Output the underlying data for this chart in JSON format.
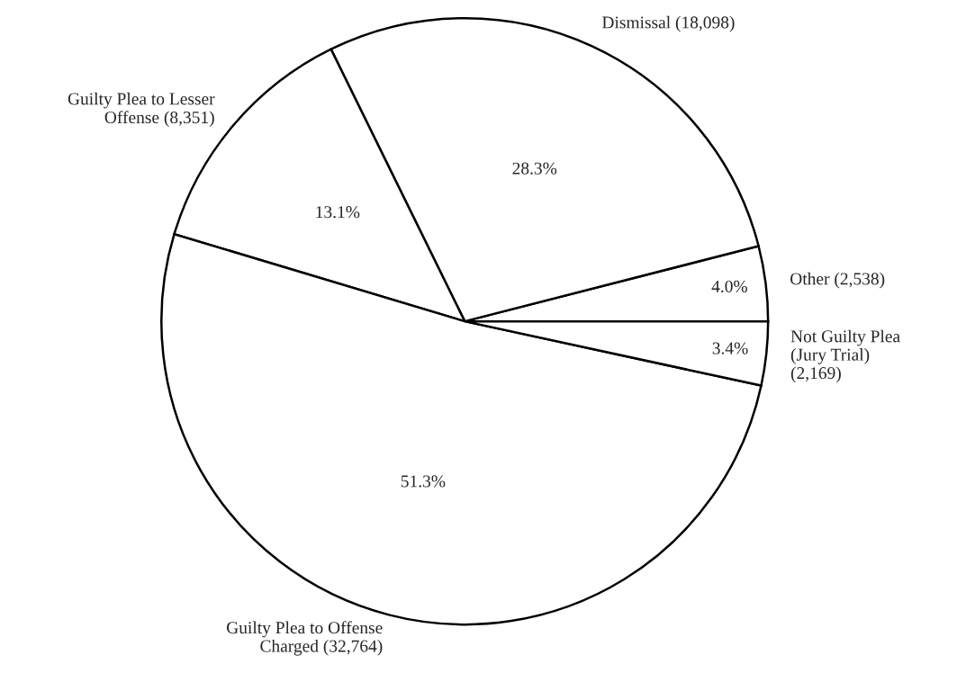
{
  "chart_data": {
    "type": "pie",
    "categories": [
      "Other (2,538)",
      "Dismissal (18,098)",
      "Guilty Plea to Lesser\nOffense (8,351)",
      "Guilty Plea to Offense\nCharged (32,764)",
      "Not Guilty Plea\n(Jury Trial)\n(2,169)"
    ],
    "values": [
      4.0,
      28.3,
      13.1,
      51.3,
      3.4
    ],
    "value_labels": [
      "4.0%",
      "28.3%",
      "13.1%",
      "51.3%",
      "3.4%"
    ],
    "colors": [
      "#ffffff",
      "#ffffff",
      "#ffffff",
      "#ffffff",
      "#ffffff"
    ],
    "legend": false
  }
}
